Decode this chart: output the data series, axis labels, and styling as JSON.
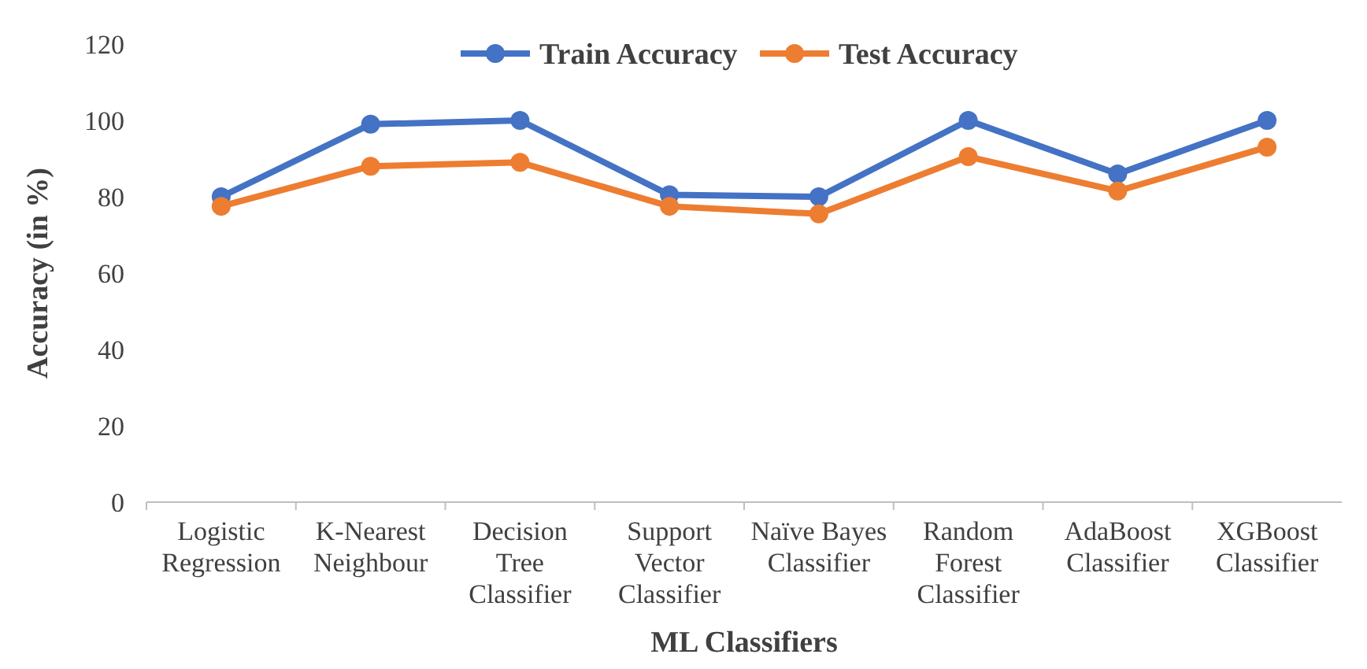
{
  "chart_data": {
    "type": "line",
    "xlabel": "ML Classifiers",
    "ylabel": "Accuracy (in %)",
    "categories": [
      "Logistic Regression",
      "K-Nearest Neighbour",
      "Decision Tree Classifier",
      "Support Vector Classifier",
      "Naïve Bayes Classifier",
      "Random Forest Classifier",
      "AdaBoost Classifier",
      "XGBoost Classifier"
    ],
    "series": [
      {
        "name": "Train Accuracy",
        "color": "#4472c4",
        "values": [
          80,
          99,
          100,
          80.5,
          80,
          100,
          86,
          100
        ]
      },
      {
        "name": "Test Accuracy",
        "color": "#ed7d31",
        "values": [
          77.5,
          88,
          89,
          77.5,
          75.5,
          90.5,
          81.5,
          93
        ]
      }
    ],
    "ylim": [
      0,
      120
    ],
    "yticks": [
      0,
      20,
      40,
      60,
      80,
      100,
      120
    ],
    "grid": false,
    "legend": "top",
    "marker": "circle",
    "line_style": "solid"
  }
}
